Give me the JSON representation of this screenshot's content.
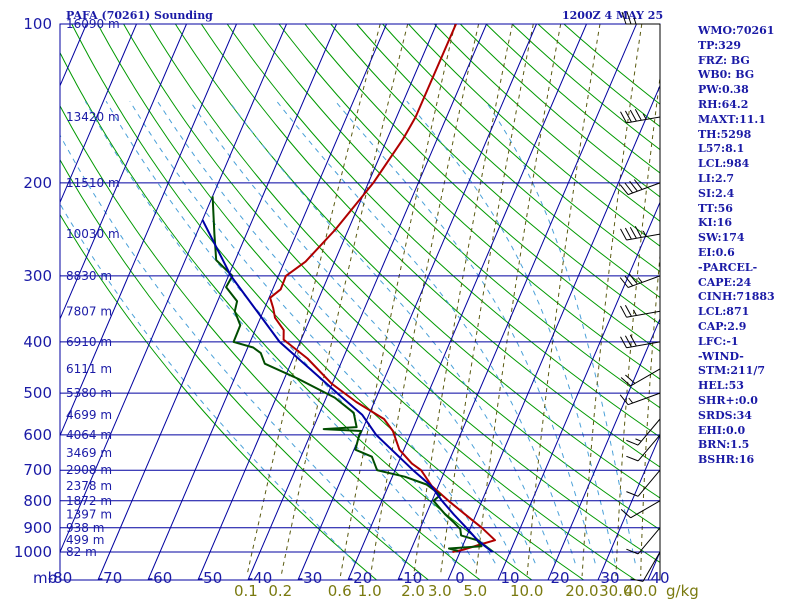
{
  "chart_data": {
    "type": "skew-t",
    "title": "PAFA (70261) Sounding",
    "valid_time": "1200Z  4 MAY 25",
    "xlim": [
      -80,
      40
    ],
    "pressure_range": [
      100,
      1000
    ],
    "pressure_labels": [
      "100",
      "200",
      "300",
      "400",
      "500",
      "600",
      "700",
      "800",
      "900",
      "1000"
    ],
    "pressure_unit": "mb",
    "temperature_ticks": [
      "-80",
      "-70",
      "-60",
      "-50",
      "-40",
      "-30",
      "-20",
      "-10",
      "0",
      "10",
      "20",
      "30",
      "40"
    ],
    "mixing_ratio_labels": [
      "0.1",
      "0.2",
      "0.6",
      "1.0",
      "2.0",
      "3.0",
      "5.0",
      "10.0",
      "20.0",
      "30.0",
      "40.0"
    ],
    "mixing_ratio_unit": "g/kg",
    "height_labels": [
      {
        "p": 100,
        "label": "16090 m"
      },
      {
        "p": 150,
        "label": "13420 m"
      },
      {
        "p": 200,
        "label": "11510 m"
      },
      {
        "p": 250,
        "label": "10030 m"
      },
      {
        "p": 300,
        "label": "8830 m"
      },
      {
        "p": 350,
        "label": "7807 m"
      },
      {
        "p": 400,
        "label": "6910 m"
      },
      {
        "p": 450,
        "label": "6111 m"
      },
      {
        "p": 500,
        "label": "5380 m"
      },
      {
        "p": 550,
        "label": "4699 m"
      },
      {
        "p": 600,
        "label": "4064 m"
      },
      {
        "p": 650,
        "label": "3469 m"
      },
      {
        "p": 700,
        "label": "2908 m"
      },
      {
        "p": 750,
        "label": "2378 m"
      },
      {
        "p": 800,
        "label": "1872 m"
      },
      {
        "p": 850,
        "label": "1397 m"
      },
      {
        "p": 900,
        "label": "938 m"
      },
      {
        "p": 950,
        "label": "499 m"
      },
      {
        "p": 1000,
        "label": "82 m"
      }
    ],
    "series": [
      {
        "key": "temperature",
        "color": "#b00000",
        "points": [
          [
            100,
            -46.1
          ],
          [
            150,
            -46.2
          ],
          [
            165,
            -46.8
          ],
          [
            200,
            -49.0
          ],
          [
            245,
            -52.6
          ],
          [
            282,
            -55.8
          ],
          [
            300,
            -58.5
          ],
          [
            318,
            -58.4
          ],
          [
            330,
            -59.8
          ],
          [
            345,
            -58.3
          ],
          [
            360,
            -57.1
          ],
          [
            380,
            -54.3
          ],
          [
            396,
            -53.5
          ],
          [
            430,
            -47.1
          ],
          [
            480,
            -40.1
          ],
          [
            520,
            -33.6
          ],
          [
            560,
            -26.6
          ],
          [
            590,
            -23.8
          ],
          [
            640,
            -20.9
          ],
          [
            680,
            -17.2
          ],
          [
            700,
            -14.8
          ],
          [
            750,
            -11.3
          ],
          [
            800,
            -6.7
          ],
          [
            850,
            -2.1
          ],
          [
            900,
            2.3
          ],
          [
            950,
            6.0
          ],
          [
            968,
            3.4
          ],
          [
            990,
            0.5
          ],
          [
            1000,
            -1.5
          ]
        ]
      },
      {
        "key": "dewpoint",
        "color": "#004d00",
        "points": [
          [
            212,
            -80
          ],
          [
            250,
            -76.4
          ],
          [
            280,
            -73.8
          ],
          [
            300,
            -69.2
          ],
          [
            315,
            -69.5
          ],
          [
            335,
            -66.1
          ],
          [
            350,
            -65.7
          ],
          [
            372,
            -63.4
          ],
          [
            400,
            -63.3
          ],
          [
            410,
            -58.9
          ],
          [
            420,
            -56.9
          ],
          [
            440,
            -55.2
          ],
          [
            470,
            -47.2
          ],
          [
            510,
            -38.3
          ],
          [
            545,
            -33.2
          ],
          [
            580,
            -31.4
          ],
          [
            585,
            -37.8
          ],
          [
            590,
            -30.1
          ],
          [
            600,
            -30.2
          ],
          [
            640,
            -29.7
          ],
          [
            660,
            -25.8
          ],
          [
            700,
            -23.6
          ],
          [
            720,
            -17.5
          ],
          [
            745,
            -12.5
          ],
          [
            780,
            -8.8
          ],
          [
            800,
            -9.7
          ],
          [
            850,
            -6.1
          ],
          [
            880,
            -3.7
          ],
          [
            905,
            -1.9
          ],
          [
            930,
            -1.2
          ],
          [
            950,
            2.4
          ],
          [
            975,
            3.8
          ],
          [
            985,
            -2.5
          ],
          [
            995,
            -0.5
          ]
        ]
      },
      {
        "key": "parcel",
        "color": "#0000a6",
        "points": [
          [
            235,
            -80
          ],
          [
            300,
            -69.5
          ],
          [
            400,
            -54.1
          ],
          [
            500,
            -38.2
          ],
          [
            550,
            -31.3
          ],
          [
            600,
            -26.8
          ],
          [
            700,
            -16.4
          ],
          [
            750,
            -11.4
          ],
          [
            800,
            -8.0
          ],
          [
            850,
            -4.4
          ],
          [
            900,
            -0.8
          ],
          [
            950,
            2.5
          ],
          [
            975,
            4.5
          ],
          [
            1000,
            6.5
          ]
        ]
      }
    ],
    "wind_barbs": [
      {
        "p": 100,
        "dir": 270,
        "spd": 25
      },
      {
        "p": 150,
        "dir": 260,
        "spd": 45
      },
      {
        "p": 200,
        "dir": 250,
        "spd": 40
      },
      {
        "p": 250,
        "dir": 260,
        "spd": 45
      },
      {
        "p": 300,
        "dir": 250,
        "spd": 35
      },
      {
        "p": 350,
        "dir": 260,
        "spd": 25
      },
      {
        "p": 400,
        "dir": 260,
        "spd": 30
      },
      {
        "p": 450,
        "dir": 240,
        "spd": 20
      },
      {
        "p": 500,
        "dir": 250,
        "spd": 15
      },
      {
        "p": 560,
        "dir": 220,
        "spd": 15
      },
      {
        "p": 600,
        "dir": 220,
        "spd": 10
      },
      {
        "p": 700,
        "dir": 220,
        "spd": 10
      },
      {
        "p": 800,
        "dir": 240,
        "spd": 10
      },
      {
        "p": 900,
        "dir": 220,
        "spd": 10
      },
      {
        "p": 1000,
        "dir": 210,
        "spd": 10
      }
    ],
    "grid": true
  },
  "indices": [
    "WMO:70261",
    "TP:329",
    "FRZ: BG",
    "WB0: BG",
    "PW:0.38",
    "RH:64.2",
    "MAXT:11.1",
    "TH:5298",
    "L57:8.1",
    "LCL:984",
    "LI:2.7",
    "SI:2.4",
    "TT:56",
    "KI:16",
    "SW:174",
    "EI:0.6",
    "-PARCEL-",
    "CAPE:24",
    "CINH:71883",
    "LCL:871",
    "CAP:2.9",
    "LFC:-1",
    "-WIND-",
    "STM:211/7",
    "HEL:53",
    "SHR+:0.0",
    "SRDS:34",
    "EHI:0.0",
    "BRN:1.5",
    "BSHR:16"
  ],
  "colors": {
    "isobar": "#0000a0",
    "isotherm": "#0000a0",
    "dry_adiabat": "#009900",
    "moist_adiabat": "#4aa0d8",
    "mixing_ratio": "#5a5a10",
    "temperature": "#b00000",
    "dewpoint": "#004d00",
    "parcel": "#0000a6",
    "text": "#1a1aa6"
  }
}
